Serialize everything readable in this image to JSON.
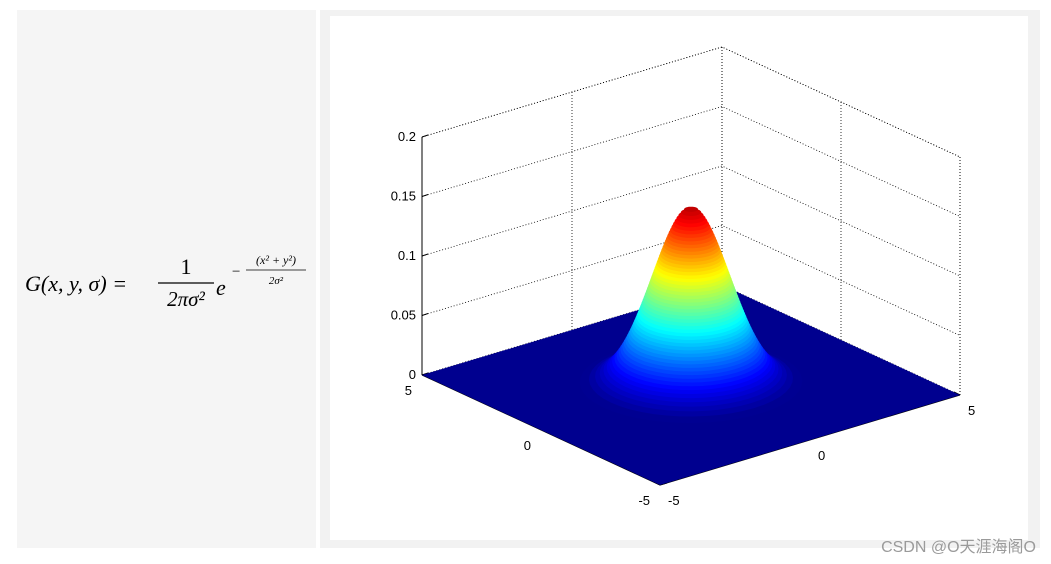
{
  "formula": {
    "lhs": "G(x, y, σ) =",
    "numerator": "1",
    "denominator": "2πσ²",
    "base": "e",
    "sign": "−",
    "exponent_numerator": "(x² + y²)",
    "exponent_denominator": "2σ²"
  },
  "chart_data": {
    "type": "surface3d",
    "peak": 0.15,
    "color": "jet",
    "grid": true,
    "xlim": [
      -5,
      5
    ],
    "xticks": [
      -5,
      0,
      5
    ],
    "ylim": [
      -5,
      5
    ],
    "yticks": [
      -5,
      0,
      5
    ],
    "zlim": [
      0,
      0.2
    ],
    "zticks": [
      0,
      0.05,
      0.1,
      0.15,
      0.2
    ]
  },
  "watermark": "CSDN @O天涯海阁O"
}
